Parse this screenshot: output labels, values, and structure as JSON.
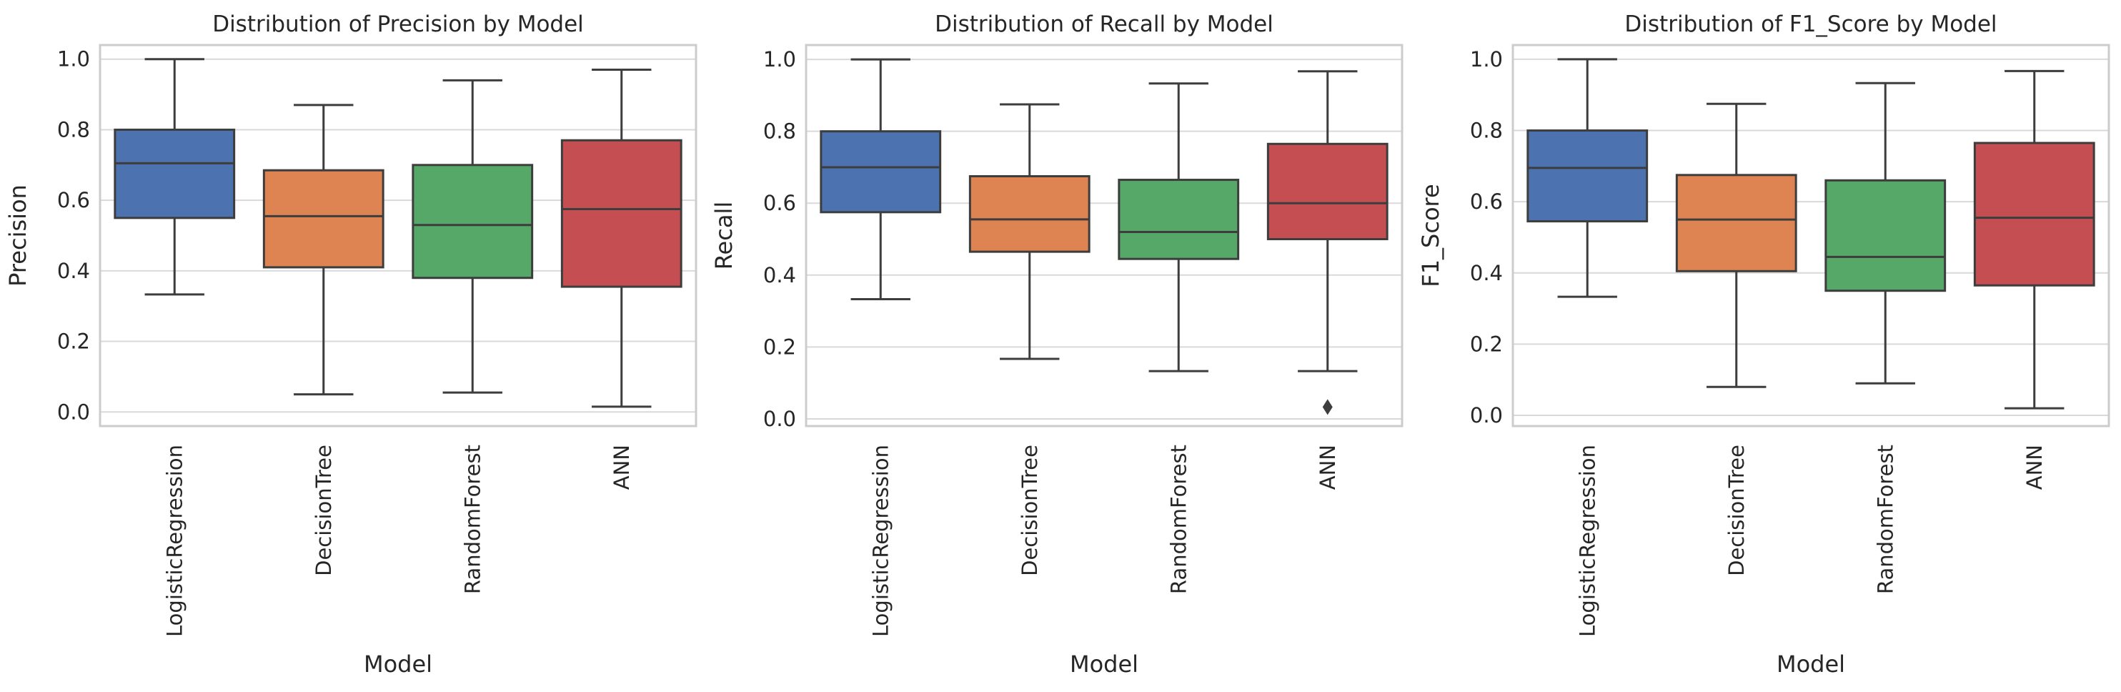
{
  "chart_data": [
    {
      "type": "box",
      "title": "Distribution of Precision by Model",
      "xlabel": "Model",
      "ylabel": "Precision",
      "ylim": [
        -0.04,
        1.04
      ],
      "yticks": [
        "0.0",
        "0.2",
        "0.4",
        "0.6",
        "0.8",
        "1.0"
      ],
      "grid": true,
      "categories": [
        "LogisticRegression",
        "DecisionTree",
        "RandomForest",
        "ANN"
      ],
      "colors": [
        "#4C72B0",
        "#DD8452",
        "#55A868",
        "#C44E52"
      ],
      "boxes": [
        {
          "whislo": 0.333,
          "q1": 0.55,
          "median": 0.705,
          "q3": 0.8,
          "whishi": 1.0,
          "fliers": []
        },
        {
          "whislo": 0.05,
          "q1": 0.41,
          "median": 0.555,
          "q3": 0.685,
          "whishi": 0.87,
          "fliers": []
        },
        {
          "whislo": 0.055,
          "q1": 0.38,
          "median": 0.53,
          "q3": 0.7,
          "whishi": 0.94,
          "fliers": []
        },
        {
          "whislo": 0.015,
          "q1": 0.355,
          "median": 0.575,
          "q3": 0.77,
          "whishi": 0.97,
          "fliers": []
        }
      ]
    },
    {
      "type": "box",
      "title": "Distribution of Recall by Model",
      "xlabel": "Model",
      "ylabel": "Recall",
      "ylim": [
        -0.02,
        1.04
      ],
      "yticks": [
        "0.0",
        "0.2",
        "0.4",
        "0.6",
        "0.8",
        "1.0"
      ],
      "grid": true,
      "categories": [
        "LogisticRegression",
        "DecisionTree",
        "RandomForest",
        "ANN"
      ],
      "colors": [
        "#4C72B0",
        "#DD8452",
        "#55A868",
        "#C44E52"
      ],
      "boxes": [
        {
          "whislo": 0.333,
          "q1": 0.575,
          "median": 0.7,
          "q3": 0.8,
          "whishi": 1.0,
          "fliers": []
        },
        {
          "whislo": 0.167,
          "q1": 0.465,
          "median": 0.555,
          "q3": 0.675,
          "whishi": 0.875,
          "fliers": []
        },
        {
          "whislo": 0.133,
          "q1": 0.445,
          "median": 0.52,
          "q3": 0.665,
          "whishi": 0.933,
          "fliers": []
        },
        {
          "whislo": 0.133,
          "q1": 0.5,
          "median": 0.6,
          "q3": 0.765,
          "whishi": 0.967,
          "fliers": [
            0.033
          ]
        }
      ]
    },
    {
      "type": "box",
      "title": "Distribution of F1_Score by Model",
      "xlabel": "Model",
      "ylabel": "F1_Score",
      "ylim": [
        -0.03,
        1.04
      ],
      "yticks": [
        "0.0",
        "0.2",
        "0.4",
        "0.6",
        "0.8",
        "1.0"
      ],
      "grid": true,
      "categories": [
        "LogisticRegression",
        "DecisionTree",
        "RandomForest",
        "ANN"
      ],
      "colors": [
        "#4C72B0",
        "#DD8452",
        "#55A868",
        "#C44E52"
      ],
      "boxes": [
        {
          "whislo": 0.333,
          "q1": 0.545,
          "median": 0.695,
          "q3": 0.8,
          "whishi": 1.0,
          "fliers": []
        },
        {
          "whislo": 0.08,
          "q1": 0.405,
          "median": 0.55,
          "q3": 0.675,
          "whishi": 0.875,
          "fliers": []
        },
        {
          "whislo": 0.09,
          "q1": 0.35,
          "median": 0.445,
          "q3": 0.66,
          "whishi": 0.933,
          "fliers": []
        },
        {
          "whislo": 0.02,
          "q1": 0.365,
          "median": 0.555,
          "q3": 0.765,
          "whishi": 0.967,
          "fliers": []
        }
      ]
    }
  ]
}
